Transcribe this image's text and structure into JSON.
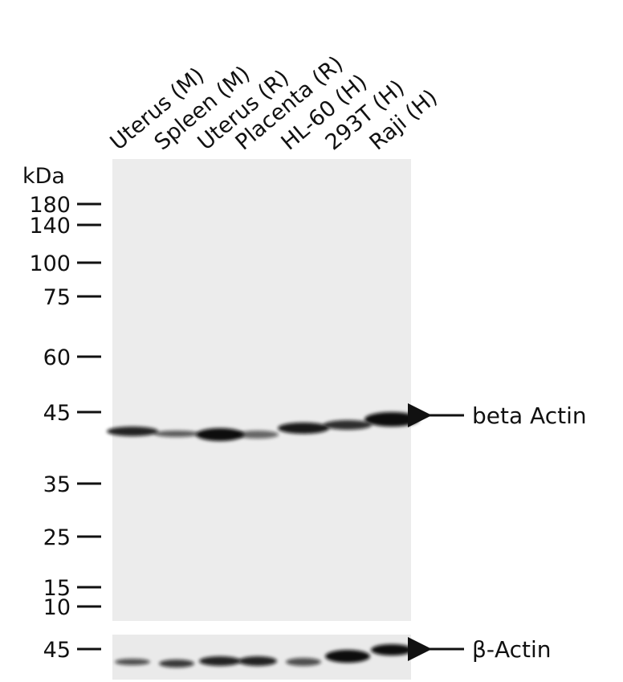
{
  "lanes": [
    "Uterus (M)",
    "Spleen (M)",
    "Uterus (R)",
    "Placenta (R)",
    "HL-60 (H)",
    "293T (H)",
    "Raji (H)"
  ],
  "unit": "kDa",
  "markers": [
    180,
    140,
    100,
    75,
    60,
    45,
    35,
    25,
    15,
    10
  ],
  "main_blot": {
    "label": "beta Actin"
  },
  "loading_blot": {
    "marker": 45,
    "label": "β-Actin"
  }
}
